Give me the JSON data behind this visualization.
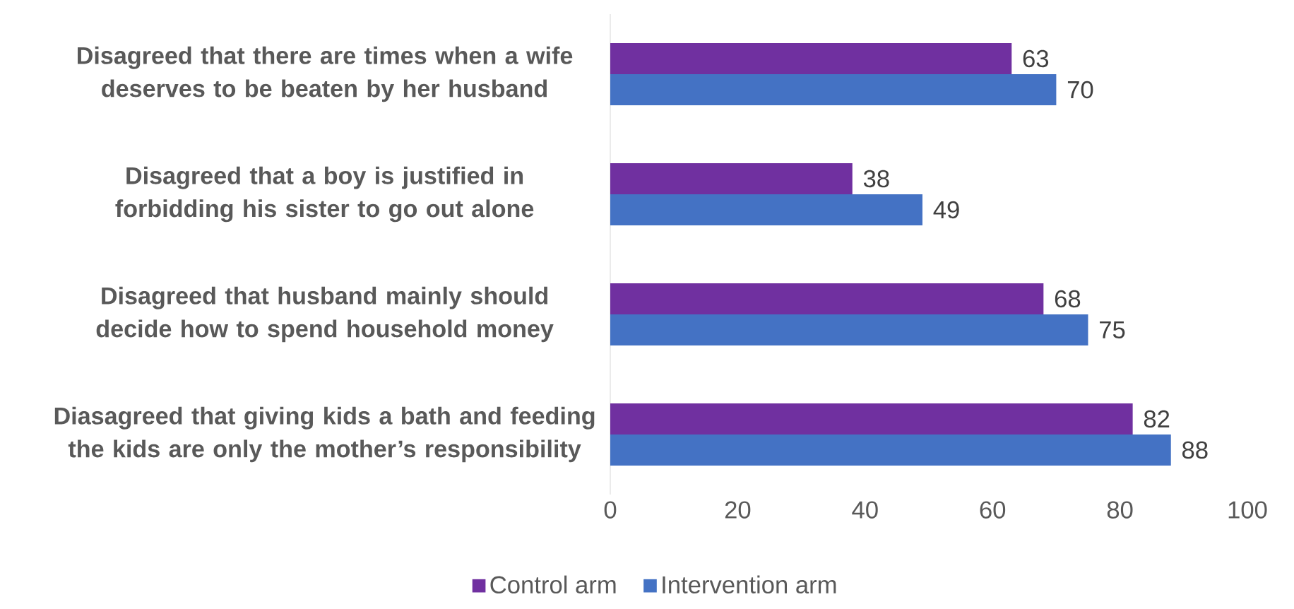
{
  "chart_data": {
    "type": "bar",
    "orientation": "horizontal",
    "categories": [
      "Disagreed that there are times when a wife deserves to be beaten by her husband",
      "Disagreed that a boy is justified in forbidding his sister to go out alone",
      "Disagreed that husband mainly should decide how to spend household money",
      "Diasagreed that giving kids a bath and feeding the kids are only the mother’s responsibility"
    ],
    "series": [
      {
        "name": "Control arm",
        "color": "#7030a0",
        "values": [
          63,
          38,
          68,
          82
        ]
      },
      {
        "name": "Intervention arm",
        "color": "#4472c4",
        "values": [
          70,
          49,
          75,
          88
        ]
      }
    ],
    "xlim": [
      0,
      100
    ],
    "xticks": [
      0,
      20,
      40,
      60,
      80,
      100
    ],
    "data_labels": true,
    "legend": "bottom"
  }
}
